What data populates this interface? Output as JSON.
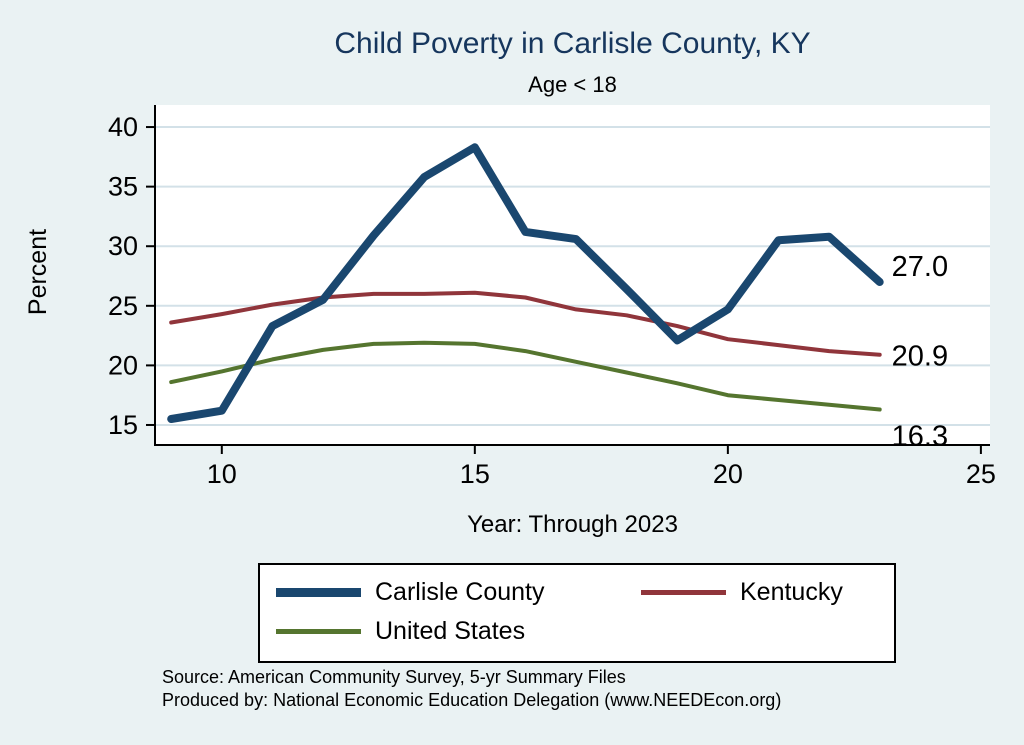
{
  "title": "Child Poverty in Carlisle County, KY",
  "subtitle": "Age < 18",
  "colors": {
    "background": "#eaf2f3",
    "plot_background": "#ffffff",
    "title": "#16365d",
    "grid": "#d3e1e8",
    "axis": "#000000",
    "navy": "#1a476f",
    "maroon": "#90353b",
    "olive": "#55752f"
  },
  "chart_data": {
    "type": "line",
    "title": "Child Poverty in Carlisle County, KY",
    "subtitle": "Age < 18",
    "xlabel": "Year: Through 2023",
    "ylabel": "Percent",
    "x": [
      9,
      10,
      11,
      12,
      13,
      14,
      15,
      16,
      17,
      18,
      19,
      20,
      21,
      22,
      23
    ],
    "xticks": [
      10,
      15,
      20,
      25
    ],
    "yticks": [
      15,
      20,
      25,
      30,
      35,
      40
    ],
    "xlim": [
      8.68,
      25.18
    ],
    "ylim": [
      13.32,
      41.85
    ],
    "grid": "horizontal",
    "legend_position": "bottom",
    "series": [
      {
        "name": "Carlisle County",
        "color": "#1a476f",
        "line_width": 8,
        "end_label": "27.0",
        "values": [
          15.5,
          16.2,
          23.3,
          25.5,
          30.9,
          35.8,
          38.3,
          31.2,
          30.6,
          26.4,
          22.1,
          24.7,
          30.5,
          30.8,
          27.0
        ]
      },
      {
        "name": "Kentucky",
        "color": "#90353b",
        "line_width": 4,
        "end_label": "20.9",
        "values": [
          23.6,
          24.3,
          25.1,
          25.7,
          26.0,
          26.0,
          26.1,
          25.7,
          24.7,
          24.2,
          23.3,
          22.2,
          21.7,
          21.2,
          20.9
        ]
      },
      {
        "name": "United States",
        "color": "#55752f",
        "line_width": 4,
        "end_label": "16.3",
        "values": [
          18.6,
          19.5,
          20.5,
          21.3,
          21.8,
          21.9,
          21.8,
          21.2,
          20.3,
          19.4,
          18.5,
          17.5,
          17.1,
          16.7,
          16.3
        ]
      }
    ]
  },
  "footer": {
    "source_line1": "Source: American Community Survey, 5-yr Summary Files",
    "source_line2": "Produced by: National Economic Education Delegation (www.NEEDEcon.org)"
  }
}
